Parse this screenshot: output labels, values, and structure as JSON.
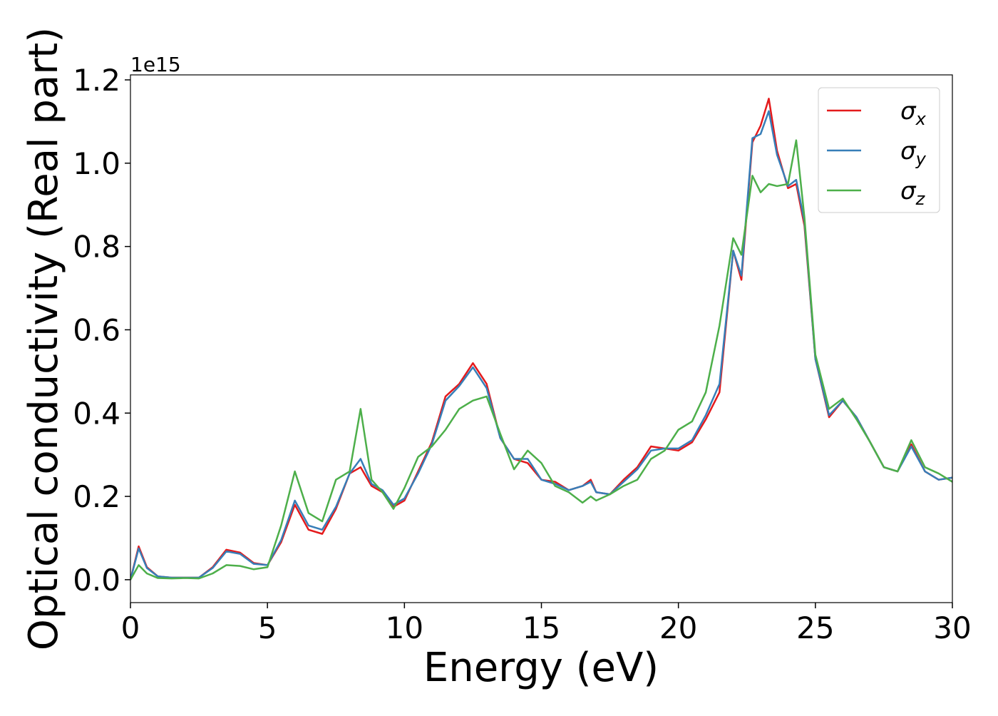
{
  "chart_data": {
    "type": "line",
    "xlabel": "Energy (eV)",
    "ylabel": "Optical conductivity (Real part)",
    "y_offset_label": "1e15",
    "x": [
      0,
      0.3,
      0.6,
      1,
      1.5,
      2,
      2.5,
      3,
      3.5,
      4,
      4.5,
      5,
      5.5,
      6,
      6.5,
      7,
      7.5,
      8,
      8.4,
      8.8,
      9.2,
      9.6,
      10,
      10.5,
      11,
      11.5,
      12,
      12.5,
      13,
      13.5,
      14,
      14.5,
      15,
      15.5,
      16,
      16.5,
      16.8,
      17,
      17.5,
      18,
      18.5,
      19,
      19.5,
      20,
      20.5,
      21,
      21.5,
      22,
      22.3,
      22.7,
      23,
      23.3,
      23.6,
      24,
      24.3,
      24.6,
      25,
      25.5,
      26,
      26.5,
      27,
      27.5,
      28,
      28.5,
      29,
      29.5,
      30
    ],
    "series": [
      {
        "name": "σx",
        "color": "#e41a1c",
        "values": [
          0,
          0.08,
          0.03,
          0.008,
          0.005,
          0.005,
          0.005,
          0.03,
          0.072,
          0.065,
          0.04,
          0.035,
          0.09,
          0.18,
          0.12,
          0.11,
          0.17,
          0.255,
          0.27,
          0.225,
          0.21,
          0.175,
          0.19,
          0.26,
          0.33,
          0.44,
          0.47,
          0.52,
          0.47,
          0.34,
          0.29,
          0.28,
          0.24,
          0.235,
          0.215,
          0.225,
          0.24,
          0.21,
          0.205,
          0.24,
          0.27,
          0.32,
          0.315,
          0.31,
          0.33,
          0.385,
          0.45,
          0.79,
          0.72,
          1.05,
          1.09,
          1.155,
          1.03,
          0.94,
          0.95,
          0.85,
          0.53,
          0.39,
          0.43,
          0.39,
          0.33,
          0.27,
          0.26,
          0.325,
          0.26,
          0.24,
          0.245
        ]
      },
      {
        "name": "σy",
        "color": "#377eb8",
        "values": [
          0,
          0.075,
          0.028,
          0.008,
          0.005,
          0.005,
          0.005,
          0.028,
          0.068,
          0.062,
          0.038,
          0.035,
          0.095,
          0.19,
          0.13,
          0.12,
          0.175,
          0.255,
          0.29,
          0.23,
          0.215,
          0.18,
          0.195,
          0.255,
          0.325,
          0.43,
          0.465,
          0.51,
          0.46,
          0.34,
          0.29,
          0.29,
          0.24,
          0.23,
          0.215,
          0.225,
          0.235,
          0.21,
          0.205,
          0.235,
          0.265,
          0.31,
          0.315,
          0.315,
          0.335,
          0.395,
          0.47,
          0.79,
          0.73,
          1.06,
          1.07,
          1.125,
          1.02,
          0.945,
          0.96,
          0.86,
          0.53,
          0.395,
          0.43,
          0.39,
          0.33,
          0.27,
          0.26,
          0.32,
          0.26,
          0.24,
          0.245
        ]
      },
      {
        "name": "σz",
        "color": "#4daf4a",
        "values": [
          0,
          0.035,
          0.015,
          0.004,
          0.003,
          0.004,
          0.003,
          0.015,
          0.035,
          0.033,
          0.025,
          0.03,
          0.13,
          0.26,
          0.16,
          0.14,
          0.24,
          0.26,
          0.41,
          0.24,
          0.21,
          0.17,
          0.22,
          0.295,
          0.32,
          0.36,
          0.41,
          0.43,
          0.44,
          0.35,
          0.265,
          0.31,
          0.28,
          0.225,
          0.21,
          0.185,
          0.2,
          0.19,
          0.205,
          0.225,
          0.24,
          0.29,
          0.31,
          0.36,
          0.38,
          0.45,
          0.61,
          0.82,
          0.78,
          0.97,
          0.93,
          0.95,
          0.945,
          0.95,
          1.055,
          0.87,
          0.54,
          0.41,
          0.435,
          0.385,
          0.33,
          0.27,
          0.26,
          0.335,
          0.27,
          0.255,
          0.235
        ]
      }
    ],
    "xlim": [
      0,
      30
    ],
    "xticks": [
      0,
      5,
      10,
      15,
      20,
      25,
      30
    ],
    "ylim": [
      -0.055,
      1.212
    ],
    "yticks": [
      {
        "value": 0,
        "label": "0.0"
      },
      0.2,
      0.4,
      0.6,
      0.8,
      {
        "value": 1,
        "label": "1.0"
      },
      1.2
    ],
    "legend": "upper right",
    "grid": false
  }
}
